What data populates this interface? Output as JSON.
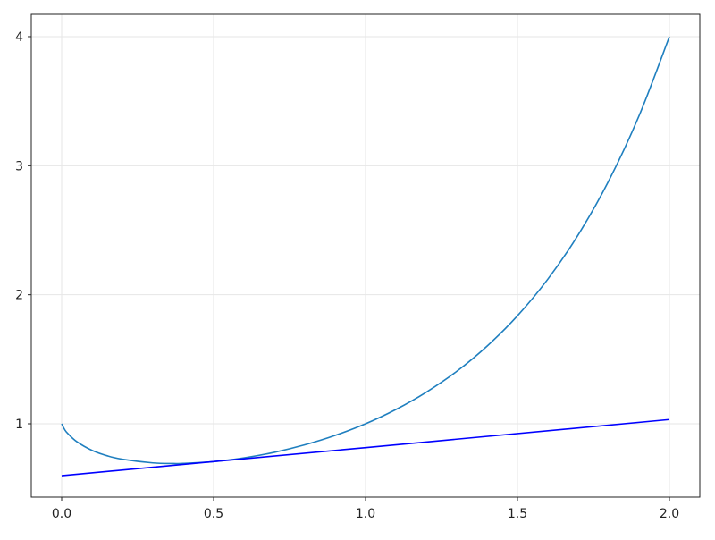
{
  "chart_data": {
    "type": "line",
    "title": "",
    "xlabel": "",
    "ylabel": "",
    "xlim": [
      -0.1,
      2.1
    ],
    "ylim": [
      0.432,
      4.173
    ],
    "grid": true,
    "xticks": [
      0.0,
      0.5,
      1.0,
      1.5,
      2.0
    ],
    "xtick_labels": [
      "0.0",
      "0.5",
      "1.0",
      "1.5",
      "2.0"
    ],
    "yticks": [
      1,
      2,
      3,
      4
    ],
    "ytick_labels": [
      "1",
      "2",
      "3",
      "4"
    ],
    "series": [
      {
        "color": "#1f7fbf",
        "x": [
          0,
          0.01,
          0.02,
          0.05,
          0.1,
          0.15,
          0.2,
          0.3,
          0.368,
          0.4,
          0.5,
          0.6,
          0.7,
          0.8,
          0.9,
          1.0,
          1.1,
          1.2,
          1.3,
          1.4,
          1.5,
          1.6,
          1.7,
          1.8,
          1.9,
          2.0
        ],
        "y": [
          1,
          0.955,
          0.925,
          0.861,
          0.794,
          0.752,
          0.725,
          0.697,
          0.692,
          0.693,
          0.707,
          0.736,
          0.779,
          0.837,
          0.91,
          1.0,
          1.111,
          1.245,
          1.406,
          1.602,
          1.837,
          2.121,
          2.465,
          2.881,
          3.386,
          4.0
        ]
      },
      {
        "color": "#0000ff",
        "x": [
          0,
          2
        ],
        "y": [
          0.598,
          1.033
        ]
      }
    ]
  }
}
